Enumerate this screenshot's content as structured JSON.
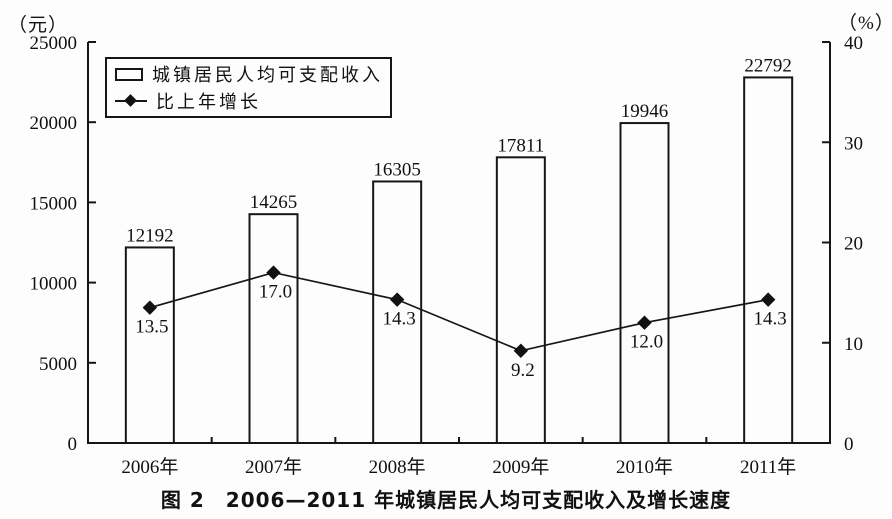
{
  "axes": {
    "left_unit": "（元）",
    "right_unit": "（%）"
  },
  "legend": {
    "items": [
      {
        "label": "城镇居民人均可支配收入",
        "marker": "bar-swatch"
      },
      {
        "label": "比上年增长",
        "marker": "diamond-line"
      }
    ]
  },
  "caption": "图 2　2006—2011 年城镇居民人均可支配收入及增长速度",
  "chart_data": {
    "type": "bar",
    "title": "图 2 2006—2011 年城镇居民人均可支配收入及增长速度",
    "categories": [
      "2006年",
      "2007年",
      "2008年",
      "2009年",
      "2010年",
      "2011年"
    ],
    "series": [
      {
        "name": "城镇居民人均可支配收入",
        "type": "bar",
        "axis": "left",
        "values": [
          12192,
          14265,
          16305,
          17811,
          19946,
          22792
        ]
      },
      {
        "name": "比上年增长",
        "type": "line",
        "axis": "right",
        "values": [
          13.5,
          17.0,
          14.3,
          9.2,
          12.0,
          14.3
        ],
        "labels": [
          "13.5",
          "17.0",
          "14.3",
          "9.2",
          "12.0",
          "14.3"
        ]
      }
    ],
    "left_axis": {
      "unit": "（元）",
      "min": 0,
      "max": 25000,
      "ticks": [
        0,
        5000,
        10000,
        15000,
        20000,
        25000
      ]
    },
    "right_axis": {
      "unit": "（%）",
      "min": 0,
      "max": 40,
      "ticks": [
        0,
        10,
        20,
        30,
        40
      ]
    },
    "grid": false,
    "legend_position": "top-left",
    "bar_fill": "#fdfdfd",
    "stroke_color": "#161616"
  }
}
